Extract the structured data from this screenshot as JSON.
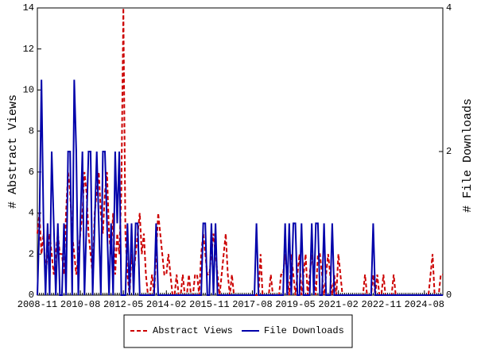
{
  "chart_data": {
    "type": "line",
    "x": [
      "2008-11",
      "2008-12",
      "2009-01",
      "2009-02",
      "2009-03",
      "2009-04",
      "2009-05",
      "2009-06",
      "2009-07",
      "2009-08",
      "2009-09",
      "2009-10",
      "2009-11",
      "2009-12",
      "2010-01",
      "2010-02",
      "2010-03",
      "2010-04",
      "2010-05",
      "2010-06",
      "2010-07",
      "2010-08",
      "2010-09",
      "2010-10",
      "2010-11",
      "2010-12",
      "2011-01",
      "2011-02",
      "2011-03",
      "2011-04",
      "2011-05",
      "2011-06",
      "2011-07",
      "2011-08",
      "2011-09",
      "2011-10",
      "2011-11",
      "2011-12",
      "2012-01",
      "2012-02",
      "2012-03",
      "2012-04",
      "2012-05",
      "2012-06",
      "2012-07",
      "2012-08",
      "2012-09",
      "2012-10",
      "2012-11",
      "2012-12",
      "2013-01",
      "2013-02",
      "2013-03",
      "2013-04",
      "2013-05",
      "2013-06",
      "2013-07",
      "2013-08",
      "2013-09",
      "2013-10",
      "2013-11",
      "2013-12",
      "2014-01",
      "2014-02",
      "2014-03",
      "2014-04",
      "2014-05",
      "2014-06",
      "2014-07",
      "2014-08",
      "2014-09",
      "2014-10",
      "2014-11",
      "2014-12",
      "2015-01",
      "2015-02",
      "2015-03",
      "2015-04",
      "2015-05",
      "2015-06",
      "2015-07",
      "2015-08",
      "2015-09",
      "2015-10",
      "2015-11",
      "2015-12",
      "2016-01",
      "2016-02",
      "2016-03",
      "2016-04",
      "2016-05",
      "2016-06",
      "2016-07",
      "2016-08",
      "2016-09",
      "2016-10",
      "2016-11",
      "2016-12",
      "2017-01",
      "2017-02",
      "2017-03",
      "2017-04",
      "2017-05",
      "2017-06",
      "2017-07",
      "2017-08",
      "2017-09",
      "2017-10",
      "2017-11",
      "2017-12",
      "2018-01",
      "2018-02",
      "2018-03",
      "2018-04",
      "2018-05",
      "2018-06",
      "2018-07",
      "2018-08",
      "2018-09",
      "2018-10",
      "2018-11",
      "2018-12",
      "2019-01",
      "2019-02",
      "2019-03",
      "2019-04",
      "2019-05",
      "2019-06",
      "2019-07",
      "2019-08",
      "2019-09",
      "2019-10",
      "2019-11",
      "2019-12",
      "2020-01",
      "2020-02",
      "2020-03",
      "2020-04",
      "2020-05",
      "2020-06",
      "2020-07",
      "2020-08",
      "2020-09",
      "2020-10",
      "2020-11",
      "2020-12",
      "2021-01",
      "2021-02",
      "2021-03",
      "2021-04",
      "2021-05",
      "2021-06",
      "2021-07",
      "2021-08",
      "2021-09",
      "2021-10",
      "2021-11",
      "2021-12",
      "2022-01",
      "2022-02",
      "2022-03",
      "2022-04",
      "2022-05",
      "2022-06",
      "2022-07",
      "2022-08",
      "2022-09",
      "2022-10",
      "2022-11",
      "2022-12",
      "2023-01",
      "2023-02",
      "2023-03",
      "2023-04",
      "2023-05",
      "2023-06",
      "2023-07",
      "2023-08",
      "2023-09",
      "2023-10",
      "2023-11",
      "2023-12",
      "2024-01",
      "2024-02",
      "2024-03",
      "2024-04",
      "2024-05",
      "2024-06",
      "2024-07",
      "2024-08",
      "2024-09",
      "2024-10",
      "2024-11",
      "2024-12",
      "2025-01",
      "2025-02",
      "2025-03",
      "2025-04",
      "2025-05"
    ],
    "series": [
      {
        "name": "Abstract Views",
        "color": "#cc0000",
        "dash": true,
        "values": [
          3,
          4,
          2,
          3,
          1,
          2,
          3,
          2,
          1,
          2,
          3,
          2,
          2,
          1,
          4,
          6,
          5,
          3,
          2,
          1,
          2,
          3,
          4,
          6,
          5,
          3,
          2,
          1,
          4,
          5,
          6,
          4,
          3,
          5,
          6,
          3,
          2,
          4,
          1,
          3,
          2,
          5,
          14,
          3,
          1,
          0,
          2,
          1,
          2,
          3,
          4,
          2,
          3,
          1,
          0,
          0,
          1,
          0,
          2,
          4,
          3,
          2,
          1,
          1,
          2,
          1,
          0,
          0,
          1,
          0,
          0,
          1,
          0,
          0,
          1,
          0,
          0,
          1,
          1,
          0,
          2,
          3,
          2,
          1,
          1,
          2,
          3,
          2,
          1,
          0,
          1,
          2,
          3,
          1,
          0,
          1,
          0,
          0,
          0,
          0,
          0,
          0,
          0,
          0,
          0,
          0,
          0,
          0,
          0,
          2,
          0,
          0,
          0,
          0,
          1,
          0,
          0,
          0,
          0,
          1,
          1,
          2,
          1,
          0,
          2,
          1,
          0,
          1,
          2,
          0,
          1,
          2,
          0,
          1,
          2,
          1,
          0,
          2,
          2,
          1,
          0,
          1,
          2,
          1,
          0,
          1,
          0,
          2,
          1,
          0,
          0,
          0,
          0,
          0,
          0,
          0,
          0,
          0,
          0,
          0,
          1,
          0,
          0,
          0,
          1,
          0,
          1,
          0,
          0,
          1,
          0,
          0,
          0,
          0,
          1,
          0,
          0,
          0,
          0,
          0,
          0,
          0,
          0,
          0,
          0,
          0,
          0,
          0,
          0,
          0,
          0,
          0,
          1,
          2,
          0,
          0,
          0,
          1,
          1
        ]
      },
      {
        "name": "File Downloads",
        "color": "#0000aa",
        "axis": "y2",
        "values": [
          0,
          1,
          3,
          1,
          0,
          1,
          0,
          2,
          1,
          0,
          1,
          0,
          0,
          1,
          0,
          2,
          2,
          0,
          3,
          2,
          0,
          1,
          2,
          0,
          1,
          2,
          2,
          0,
          1,
          2,
          1,
          0,
          2,
          2,
          1,
          0,
          1,
          0,
          2,
          1,
          2,
          0,
          0,
          0,
          1,
          0,
          1,
          0,
          1,
          1,
          0,
          0,
          0,
          0,
          0,
          0,
          0,
          0,
          1,
          0,
          0,
          0,
          0,
          0,
          0,
          0,
          0,
          0,
          0,
          0,
          0,
          0,
          0,
          0,
          0,
          0,
          0,
          0,
          0,
          0,
          0,
          1,
          1,
          0,
          0,
          1,
          0,
          1,
          0,
          0,
          0,
          0,
          0,
          0,
          0,
          0,
          0,
          0,
          0,
          0,
          0,
          0,
          0,
          0,
          0,
          0,
          0,
          1,
          0,
          0,
          0,
          0,
          0,
          0,
          0,
          0,
          0,
          0,
          0,
          0,
          0,
          1,
          0,
          1,
          0,
          1,
          1,
          0,
          0,
          1,
          0,
          0,
          0,
          0,
          1,
          0,
          1,
          1,
          0,
          0,
          1,
          0,
          0,
          0,
          1,
          0,
          0,
          0,
          0,
          0,
          0,
          0,
          0,
          0,
          0,
          0,
          0,
          0,
          0,
          0,
          0,
          0,
          0,
          0,
          1,
          0,
          0,
          0,
          0,
          0,
          0,
          0,
          0,
          0,
          0,
          0,
          0,
          0,
          0,
          0,
          0,
          0,
          0,
          0,
          0,
          0,
          0,
          0,
          0,
          0,
          0,
          0,
          0,
          0,
          0,
          0,
          0,
          0,
          0
        ]
      }
    ],
    "xticks": [
      "2008-11",
      "2010-08",
      "2012-05",
      "2014-02",
      "2015-11",
      "2017-08",
      "2019-05",
      "2021-02",
      "2022-11",
      "2024-08"
    ],
    "ylim": [
      0,
      14
    ],
    "yticks": [
      0,
      2,
      4,
      6,
      8,
      10,
      12,
      14
    ],
    "y2lim": [
      0,
      4
    ],
    "y2ticks": [
      0,
      2,
      4
    ],
    "ylabel": "# Abstract Views",
    "y2label": "# File Downloads",
    "legend": "bottom"
  }
}
